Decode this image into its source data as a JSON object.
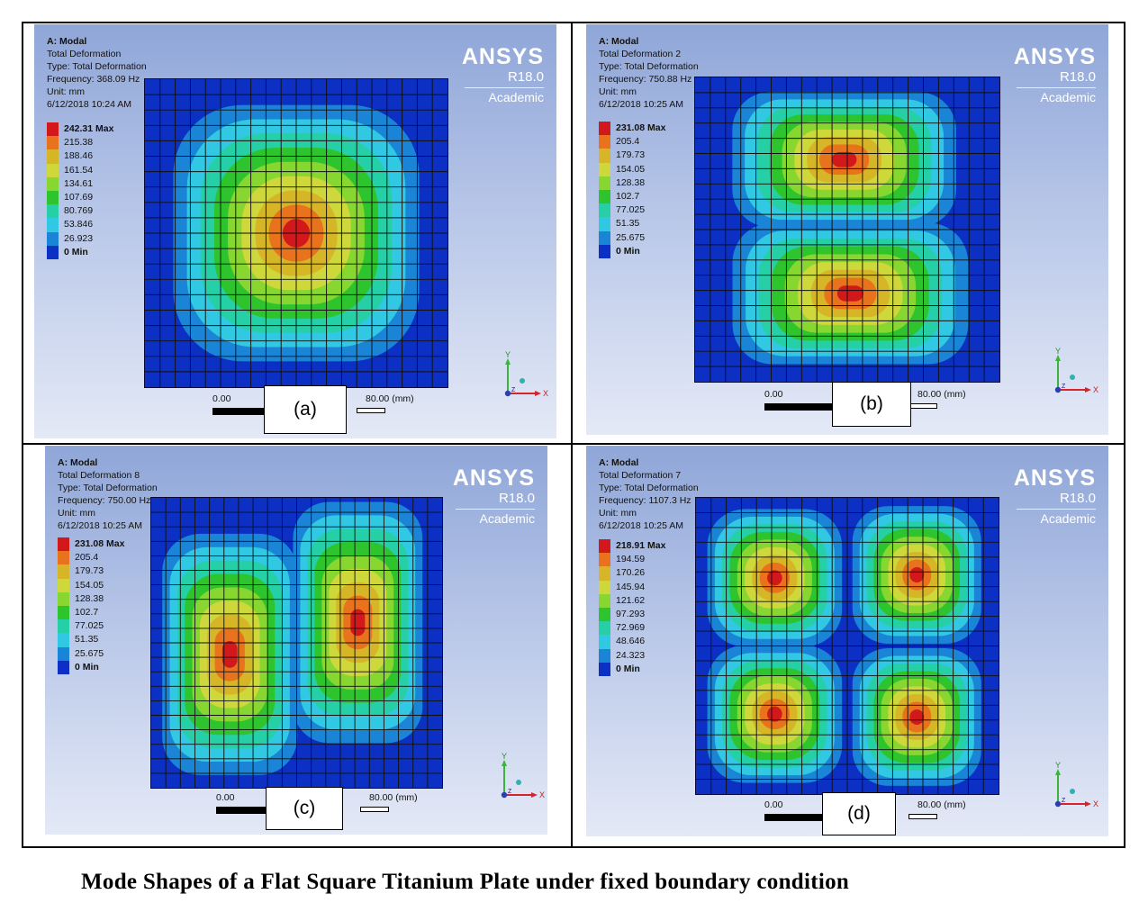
{
  "colors": [
    "#d2181b",
    "#e8731c",
    "#d6b626",
    "#cfd83a",
    "#88d630",
    "#2ec42e",
    "#26d0a6",
    "#30c8e2",
    "#1a84d6",
    "#0c2fc4"
  ],
  "panels": [
    {
      "info": [
        "A: Modal",
        "Total Deformation",
        "Type: Total Deformation",
        "Frequency: 368.09 Hz",
        "Unit: mm",
        "6/12/2018 10:24 AM"
      ],
      "legend": [
        "242.31 Max",
        "215.38",
        "188.46",
        "161.54",
        "134.61",
        "107.69",
        "80.769",
        "53.846",
        "26.923",
        "0 Min"
      ],
      "logo": {
        "brand": "ANSYS",
        "version": "R18.0",
        "edition": "Academic"
      },
      "scale": {
        "start": "0.00",
        "end": "80.00 (mm)"
      },
      "axes": {
        "y": "Y",
        "x": "X",
        "z": "Z"
      },
      "tag": "(a)"
    },
    {
      "info": [
        "A: Modal",
        "Total Deformation 2",
        "Type: Total Deformation",
        "Frequency: 750.88 Hz",
        "Unit: mm",
        "6/12/2018 10:25 AM"
      ],
      "legend": [
        "231.08 Max",
        "205.4",
        "179.73",
        "154.05",
        "128.38",
        "102.7",
        "77.025",
        "51.35",
        "25.675",
        "0 Min"
      ],
      "logo": {
        "brand": "ANSYS",
        "version": "R18.0",
        "edition": "Academic"
      },
      "scale": {
        "start": "0.00",
        "end": "80.00 (mm)"
      },
      "axes": {
        "y": "Y",
        "x": "X",
        "z": "Z"
      },
      "tag": "(b)"
    },
    {
      "info": [
        "A: Modal",
        "Total Deformation 8",
        "Type: Total Deformation",
        "Frequency: 750.00 Hz",
        "Unit: mm",
        "6/12/2018 10:25 AM"
      ],
      "legend": [
        "231.08 Max",
        "205.4",
        "179.73",
        "154.05",
        "128.38",
        "102.7",
        "77.025",
        "51.35",
        "25.675",
        "0 Min"
      ],
      "logo": {
        "brand": "ANSYS",
        "version": "R18.0",
        "edition": "Academic"
      },
      "scale": {
        "start": "0.00",
        "end": "80.00 (mm)"
      },
      "axes": {
        "y": "Y",
        "x": "X",
        "z": "Z"
      },
      "tag": "(c)"
    },
    {
      "info": [
        "A: Modal",
        "Total Deformation 7",
        "Type: Total Deformation",
        "Frequency: 1107.3 Hz",
        "Unit: mm",
        "6/12/2018 10:25 AM"
      ],
      "legend": [
        "218.91 Max",
        "194.59",
        "170.26",
        "145.94",
        "121.62",
        "97.293",
        "72.969",
        "48.646",
        "24.323",
        "0 Min"
      ],
      "logo": {
        "brand": "ANSYS",
        "version": "R18.0",
        "edition": "Academic"
      },
      "scale": {
        "start": "0.00",
        "end": "80.00 (mm)"
      },
      "axes": {
        "y": "Y",
        "x": "X",
        "z": "Z"
      },
      "tag": "(d)"
    }
  ],
  "caption": "Mode Shapes of a Flat Square Titanium Plate under fixed boundary condition"
}
